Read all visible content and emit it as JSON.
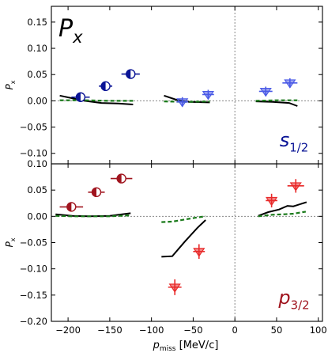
{
  "figure": {
    "title": "P",
    "title_sub": "x",
    "xlabel_main": "p",
    "xlabel_sub": "miss",
    "xlabel_unit": " [MeV/c]"
  },
  "colors": {
    "s_filled": "#0a1496",
    "s_open": "#4a5ae6",
    "p_filled": "#a0141e",
    "p_open": "#e82a2a",
    "theory_solid": "#000000",
    "theory_dashed": "#1a7a1a",
    "refline": "#888888"
  },
  "chart_data": [
    {
      "type": "scatter",
      "panel": "top",
      "ylabel_main": "P",
      "ylabel_sub": "x",
      "xlim": [
        -220,
        105
      ],
      "ylim": [
        -0.12,
        0.18
      ],
      "yticks": [
        "0.15",
        "0.10",
        "0.05",
        "0.00",
        "−0.05",
        "−0.10"
      ],
      "ytick_values": [
        0.15,
        0.1,
        0.05,
        0.0,
        -0.05,
        -0.1
      ],
      "grid": false,
      "label_main": "s",
      "label_sub": "1/2",
      "points": [
        {
          "x": -185,
          "y": 0.007,
          "yerr": 0.007,
          "xerr": 11,
          "marker": "half-circle",
          "style": "filled"
        },
        {
          "x": -155,
          "y": 0.028,
          "yerr": 0.007,
          "xerr": 8,
          "marker": "half-circle",
          "style": "filled"
        },
        {
          "x": -125,
          "y": 0.051,
          "yerr": 0.008,
          "xerr": 11,
          "marker": "half-circle",
          "style": "filled"
        },
        {
          "x": -63,
          "y": -0.002,
          "yerr": 0.009,
          "xerr": 7,
          "marker": "triangle-down",
          "style": "open"
        },
        {
          "x": -32,
          "y": 0.012,
          "yerr": 0.009,
          "xerr": 7,
          "marker": "triangle-down",
          "style": "open"
        },
        {
          "x": 37,
          "y": 0.018,
          "yerr": 0.009,
          "xerr": 8,
          "marker": "triangle-down",
          "style": "open"
        },
        {
          "x": 66,
          "y": 0.034,
          "yerr": 0.009,
          "xerr": 9,
          "marker": "triangle-down",
          "style": "open"
        }
      ],
      "series": [
        {
          "style": "solid",
          "segments": [
            [
              [
                -210,
                0.01
              ],
              [
                -195,
                0.005
              ],
              [
                -180,
                0.0
              ],
              [
                -160,
                -0.004
              ],
              [
                -140,
                -0.005
              ],
              [
                -122,
                -0.007
              ]
            ],
            [
              [
                -85,
                0.01
              ],
              [
                -70,
                0.002
              ],
              [
                -55,
                -0.002
              ],
              [
                -30,
                -0.003
              ]
            ],
            [
              [
                25,
                -0.001
              ],
              [
                45,
                -0.002
              ],
              [
                65,
                -0.004
              ],
              [
                75,
                -0.01
              ]
            ]
          ]
        },
        {
          "style": "dashed",
          "segments": [
            [
              [
                -210,
                0.001
              ],
              [
                -180,
                0.001
              ],
              [
                -150,
                0.0
              ],
              [
                -122,
                0.0
              ]
            ],
            [
              [
                -85,
                -0.001
              ],
              [
                -60,
                -0.002
              ],
              [
                -30,
                -0.001
              ]
            ],
            [
              [
                25,
                0.0
              ],
              [
                50,
                0.001
              ],
              [
                75,
                0.001
              ]
            ]
          ]
        }
      ]
    },
    {
      "type": "scatter",
      "panel": "bottom",
      "ylabel_main": "P",
      "ylabel_sub": "x",
      "xlim": [
        -220,
        105
      ],
      "ylim": [
        -0.2,
        0.1
      ],
      "xticks": [
        "−200",
        "−150",
        "−100",
        "−50",
        "0",
        "50",
        "100"
      ],
      "xtick_values": [
        -200,
        -150,
        -100,
        -50,
        0,
        50,
        100
      ],
      "yticks": [
        "0.10",
        "0.05",
        "0.00",
        "−0.05",
        "−0.10",
        "−0.15",
        "−0.20"
      ],
      "ytick_values": [
        0.1,
        0.05,
        0.0,
        -0.05,
        -0.1,
        -0.15,
        -0.2
      ],
      "grid": false,
      "label_main": "p",
      "label_sub": "3/2",
      "points": [
        {
          "x": -196,
          "y": 0.018,
          "yerr": 0.009,
          "xerr": 14,
          "marker": "half-circle",
          "style": "filled"
        },
        {
          "x": -166,
          "y": 0.046,
          "yerr": 0.008,
          "xerr": 10,
          "marker": "half-circle",
          "style": "filled"
        },
        {
          "x": -136,
          "y": 0.072,
          "yerr": 0.008,
          "xerr": 13,
          "marker": "half-circle",
          "style": "filled"
        },
        {
          "x": -72,
          "y": -0.135,
          "yerr": 0.015,
          "xerr": 8,
          "marker": "triangle-down",
          "style": "open"
        },
        {
          "x": -43,
          "y": -0.067,
          "yerr": 0.014,
          "xerr": 7,
          "marker": "triangle-down",
          "style": "open"
        },
        {
          "x": 44,
          "y": 0.03,
          "yerr": 0.013,
          "xerr": 7,
          "marker": "triangle-down",
          "style": "open"
        },
        {
          "x": 73,
          "y": 0.058,
          "yerr": 0.013,
          "xerr": 10,
          "marker": "triangle-down",
          "style": "open"
        }
      ],
      "series": [
        {
          "style": "solid",
          "segments": [
            [
              [
                -215,
                0.004
              ],
              [
                -195,
                0.001
              ],
              [
                -175,
                0.0
              ],
              [
                -150,
                0.001
              ],
              [
                -125,
                0.006
              ]
            ],
            [
              [
                -88,
                -0.077
              ],
              [
                -75,
                -0.076
              ],
              [
                -60,
                -0.048
              ],
              [
                -45,
                -0.022
              ],
              [
                -35,
                -0.007
              ]
            ],
            [
              [
                28,
                0.001
              ],
              [
                40,
                0.008
              ],
              [
                53,
                0.013
              ],
              [
                63,
                0.02
              ],
              [
                70,
                0.019
              ],
              [
                86,
                0.027
              ]
            ]
          ]
        },
        {
          "style": "dashed",
          "segments": [
            [
              [
                -215,
                0.001
              ],
              [
                -195,
                0.0
              ],
              [
                -175,
                0.0
              ],
              [
                -150,
                0.0
              ],
              [
                -125,
                0.002
              ]
            ],
            [
              [
                -88,
                -0.011
              ],
              [
                -75,
                -0.01
              ],
              [
                -60,
                -0.006
              ],
              [
                -45,
                -0.002
              ],
              [
                -35,
                0.0
              ]
            ],
            [
              [
                28,
                0.0
              ],
              [
                45,
                0.003
              ],
              [
                60,
                0.004
              ],
              [
                70,
                0.005
              ],
              [
                85,
                0.009
              ]
            ]
          ]
        }
      ]
    }
  ]
}
